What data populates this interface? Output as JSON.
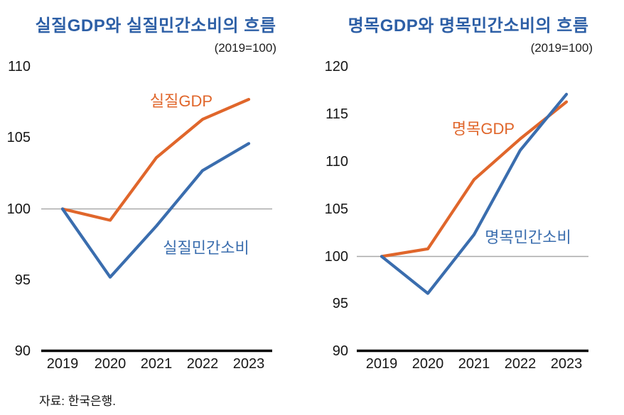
{
  "page": {
    "source_note": "자료: 한국은행."
  },
  "colors": {
    "title_blue": "#2D5FA6",
    "gdp_orange": "#E0662B",
    "consumption_blue": "#3A6DAE",
    "axis_black": "#000000",
    "baseline_gray": "#A9A9A9"
  },
  "chart_data": [
    {
      "type": "line",
      "title": "실질GDP와 실질민간소비의 흐름",
      "subtitle": "(2019=100)",
      "categories": [
        "2019",
        "2020",
        "2021",
        "2022",
        "2023"
      ],
      "series": [
        {
          "name": "실질GDP",
          "color": "#E0662B",
          "values": [
            100,
            99.2,
            103.6,
            106.3,
            107.7
          ]
        },
        {
          "name": "실질민간소비",
          "color": "#3A6DAE",
          "values": [
            100,
            95.2,
            98.8,
            102.7,
            104.6
          ]
        }
      ],
      "ylim": [
        90,
        110
      ],
      "yticks": [
        110,
        105,
        100,
        95,
        90
      ],
      "baseline_value": 100,
      "grid": "baseline-only",
      "legend": "inline-labels"
    },
    {
      "type": "line",
      "title": "명목GDP와 명목민간소비의 흐름",
      "subtitle": "(2019=100)",
      "categories": [
        "2019",
        "2020",
        "2021",
        "2022",
        "2023"
      ],
      "series": [
        {
          "name": "명목GDP",
          "color": "#E0662B",
          "values": [
            100,
            100.8,
            108.1,
            112.4,
            116.3
          ]
        },
        {
          "name": "명목민간소비",
          "color": "#3A6DAE",
          "values": [
            100,
            96.1,
            102.3,
            111.2,
            117.1
          ]
        }
      ],
      "ylim": [
        90,
        120
      ],
      "yticks": [
        120,
        115,
        110,
        105,
        100,
        95,
        90
      ],
      "baseline_value": 100,
      "grid": "baseline-only",
      "legend": "inline-labels"
    }
  ]
}
